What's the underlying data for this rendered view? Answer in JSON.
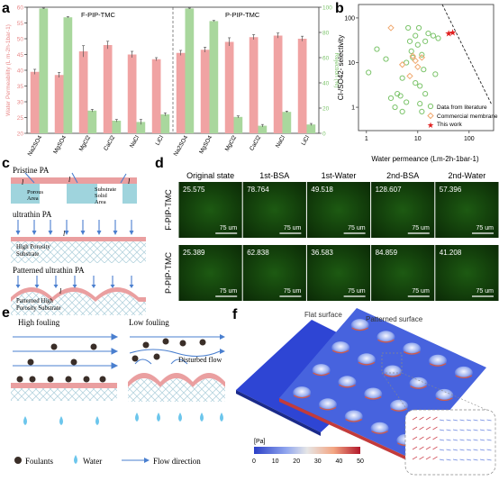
{
  "panels": {
    "a": "a",
    "b": "b",
    "c": "c",
    "d": "d",
    "e": "e",
    "f": "f"
  },
  "chart_data": [
    {
      "type": "bar",
      "panel": "a",
      "groups": [
        "F-PIP-TMC",
        "P-PIP-TMC"
      ],
      "categories": [
        "Na2SO4",
        "MgSO4",
        "MgCl2",
        "CaCl2",
        "NaCl",
        "LiCl"
      ],
      "ylabel": "Water Permeability (L m-2h-1bar-1)",
      "y2label": "Rejection (%)",
      "ylim": [
        20,
        60
      ],
      "y2lim": [
        0,
        100
      ],
      "yticks": [
        "20",
        "25",
        "30",
        "35",
        "40",
        "45",
        "50",
        "55",
        "60"
      ],
      "y2ticks": [
        "0",
        "20",
        "40",
        "60",
        "80",
        "100"
      ],
      "colors": {
        "permeability": "#f0a3a3",
        "rejection": "#a9d79d"
      },
      "series": [
        {
          "name": "F-PIP-TMC",
          "permeability": [
            39.5,
            38.5,
            46,
            48,
            45,
            43.5
          ],
          "perm_err": [
            0.8,
            0.8,
            1.8,
            1.2,
            1.0,
            0.5
          ],
          "rejection": [
            99,
            92,
            18,
            10,
            9,
            15
          ],
          "rej_err": [
            0.3,
            0.5,
            1.0,
            1.0,
            2.0,
            1.2
          ]
        },
        {
          "name": "P-PIP-TMC",
          "permeability": [
            45.5,
            46.5,
            49,
            50.5,
            51,
            50
          ],
          "perm_err": [
            0.8,
            0.8,
            1.3,
            0.8,
            0.8,
            0.8
          ],
          "rejection": [
            99,
            89,
            13,
            6,
            17,
            7
          ],
          "rej_err": [
            0.3,
            0.5,
            0.8,
            1.0,
            0.6,
            0.8
          ]
        }
      ]
    },
    {
      "type": "scatter",
      "panel": "b",
      "xlabel": "Water permeance (Lm-2h-1bar-1)",
      "ylabel": "Cl-/SO42- selectivity",
      "xscale": "log",
      "yscale": "log",
      "xlim": [
        0.7,
        300
      ],
      "ylim": [
        0.3,
        200
      ],
      "xticks": [
        "1",
        "10",
        "100"
      ],
      "yticks": [
        "1",
        "10",
        "100"
      ],
      "legend": [
        "Data from literature",
        "Commercial membrane",
        "This work"
      ],
      "legend_position": "bottom-right",
      "colors": {
        "literature": "#7cc46b",
        "commercial": "#f0a86e",
        "this_work": "#e02020"
      },
      "literature": [
        [
          1.1,
          6
        ],
        [
          1.6,
          20
        ],
        [
          2.4,
          12
        ],
        [
          3,
          1.6
        ],
        [
          3.6,
          1
        ],
        [
          4,
          2
        ],
        [
          4.6,
          1.8
        ],
        [
          5,
          0.8
        ],
        [
          6,
          1.3
        ],
        [
          5,
          4.5
        ],
        [
          6,
          10
        ],
        [
          7,
          30
        ],
        [
          7.5,
          18
        ],
        [
          8,
          13
        ],
        [
          9,
          40
        ],
        [
          10,
          25
        ],
        [
          10.5,
          60
        ],
        [
          11,
          3
        ],
        [
          12,
          15
        ],
        [
          13,
          7
        ],
        [
          14,
          30
        ],
        [
          16,
          45
        ],
        [
          20,
          40
        ],
        [
          22,
          5.5
        ],
        [
          25,
          35
        ],
        [
          9,
          3.5
        ],
        [
          11,
          1.2
        ],
        [
          12,
          0.8
        ],
        [
          14,
          2
        ],
        [
          6.5,
          60
        ]
      ],
      "commercial": [
        [
          3,
          60
        ],
        [
          5,
          9
        ],
        [
          7,
          5
        ],
        [
          9,
          11
        ],
        [
          10,
          8
        ],
        [
          12,
          13
        ],
        [
          8,
          14
        ]
      ],
      "this_work": [
        [
          40,
          45
        ],
        [
          48,
          47
        ]
      ],
      "trade_off_line": [
        [
          30,
          200
        ],
        [
          270,
          1.2
        ]
      ]
    }
  ],
  "panel_a": {
    "group_labels": [
      "F-PIP-TMC",
      "P-PIP-TMC"
    ]
  },
  "panel_c": {
    "pristine_title": "Pristine PA",
    "porous_label": "Porous\nArea",
    "solid_label": "Substrate\nSolid\nArea",
    "l_symbol": "l",
    "ultrathin_title": "ultrathin PA",
    "high_porosity_label": "High Porosity\nSubstrate",
    "patterned_title": "Patterned ultrathin PA",
    "patterned_sub_label": "Patterned High\nPorosity Substrate"
  },
  "panel_d": {
    "columns": [
      "Original state",
      "1st-BSA",
      "1st-Water",
      "2nd-BSA",
      "2nd-Water"
    ],
    "rows": [
      {
        "label": "F-PIP-TMC",
        "values": [
          "25.575",
          "78.764",
          "49.518",
          "128.607",
          "57.396"
        ]
      },
      {
        "label": "P-PIP-TMC",
        "values": [
          "25.389",
          "62.838",
          "36.583",
          "84.859",
          "41.208"
        ]
      }
    ],
    "scale_bar": "75 um"
  },
  "panel_e": {
    "high_fouling": "High fouling",
    "low_fouling": "Low fouling",
    "disturbed_flow": "Disturbed flow",
    "legend_foulants": "Foulants",
    "legend_water": "Water",
    "legend_flow": "Flow direction"
  },
  "panel_f": {
    "flat_label": "Flat surface",
    "patterned_label": "Patterned surface",
    "colorbar_unit": "[Pa]",
    "colorbar_ticks": [
      "0",
      "10",
      "20",
      "30",
      "40",
      "50"
    ]
  }
}
